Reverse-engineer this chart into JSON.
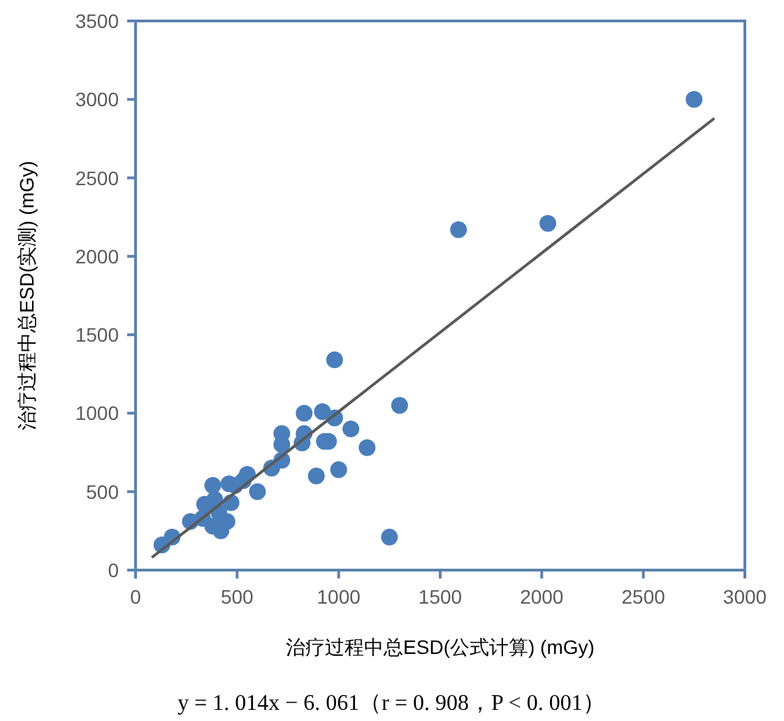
{
  "chart_data": {
    "type": "scatter",
    "xlabel": "治疗过程中总ESD(公式计算) (mGy)",
    "ylabel": "治疗过程中总ESD(实测) (mGy)",
    "annotations": [
      "y = 1. 014x − 6. 061（r = 0. 908，P < 0. 001）"
    ],
    "xlim": [
      0,
      3000
    ],
    "xticks": [
      0,
      500,
      1000,
      1500,
      2000,
      2500,
      3000
    ],
    "ylim": [
      0,
      3500
    ],
    "yticks": [
      0,
      500,
      1000,
      1500,
      2000,
      2500,
      3000,
      3500
    ],
    "grid": false,
    "series": [
      {
        "marker": "circle",
        "color": "#4a7ebb",
        "x": [
          980,
          1300,
          830,
          920,
          980,
          1060,
          720,
          830,
          720,
          820,
          930,
          950,
          1140,
          720,
          670,
          890,
          1000,
          600,
          550,
          530,
          460,
          490,
          380,
          470,
          340,
          390,
          410,
          450,
          270,
          330,
          380,
          420,
          180,
          130,
          1250,
          1590,
          2030,
          2750
        ],
        "values": [
          1340,
          1050,
          1000,
          1010,
          970,
          900,
          870,
          870,
          800,
          810,
          820,
          820,
          780,
          700,
          650,
          600,
          640,
          500,
          610,
          570,
          550,
          540,
          540,
          430,
          420,
          450,
          370,
          310,
          310,
          330,
          280,
          250,
          210,
          160,
          210,
          2170,
          2210,
          3000
        ]
      },
      {
        "type": "line",
        "color": "#595959",
        "x": [
          80,
          2850
        ],
        "values": [
          80,
          2880
        ]
      }
    ]
  }
}
